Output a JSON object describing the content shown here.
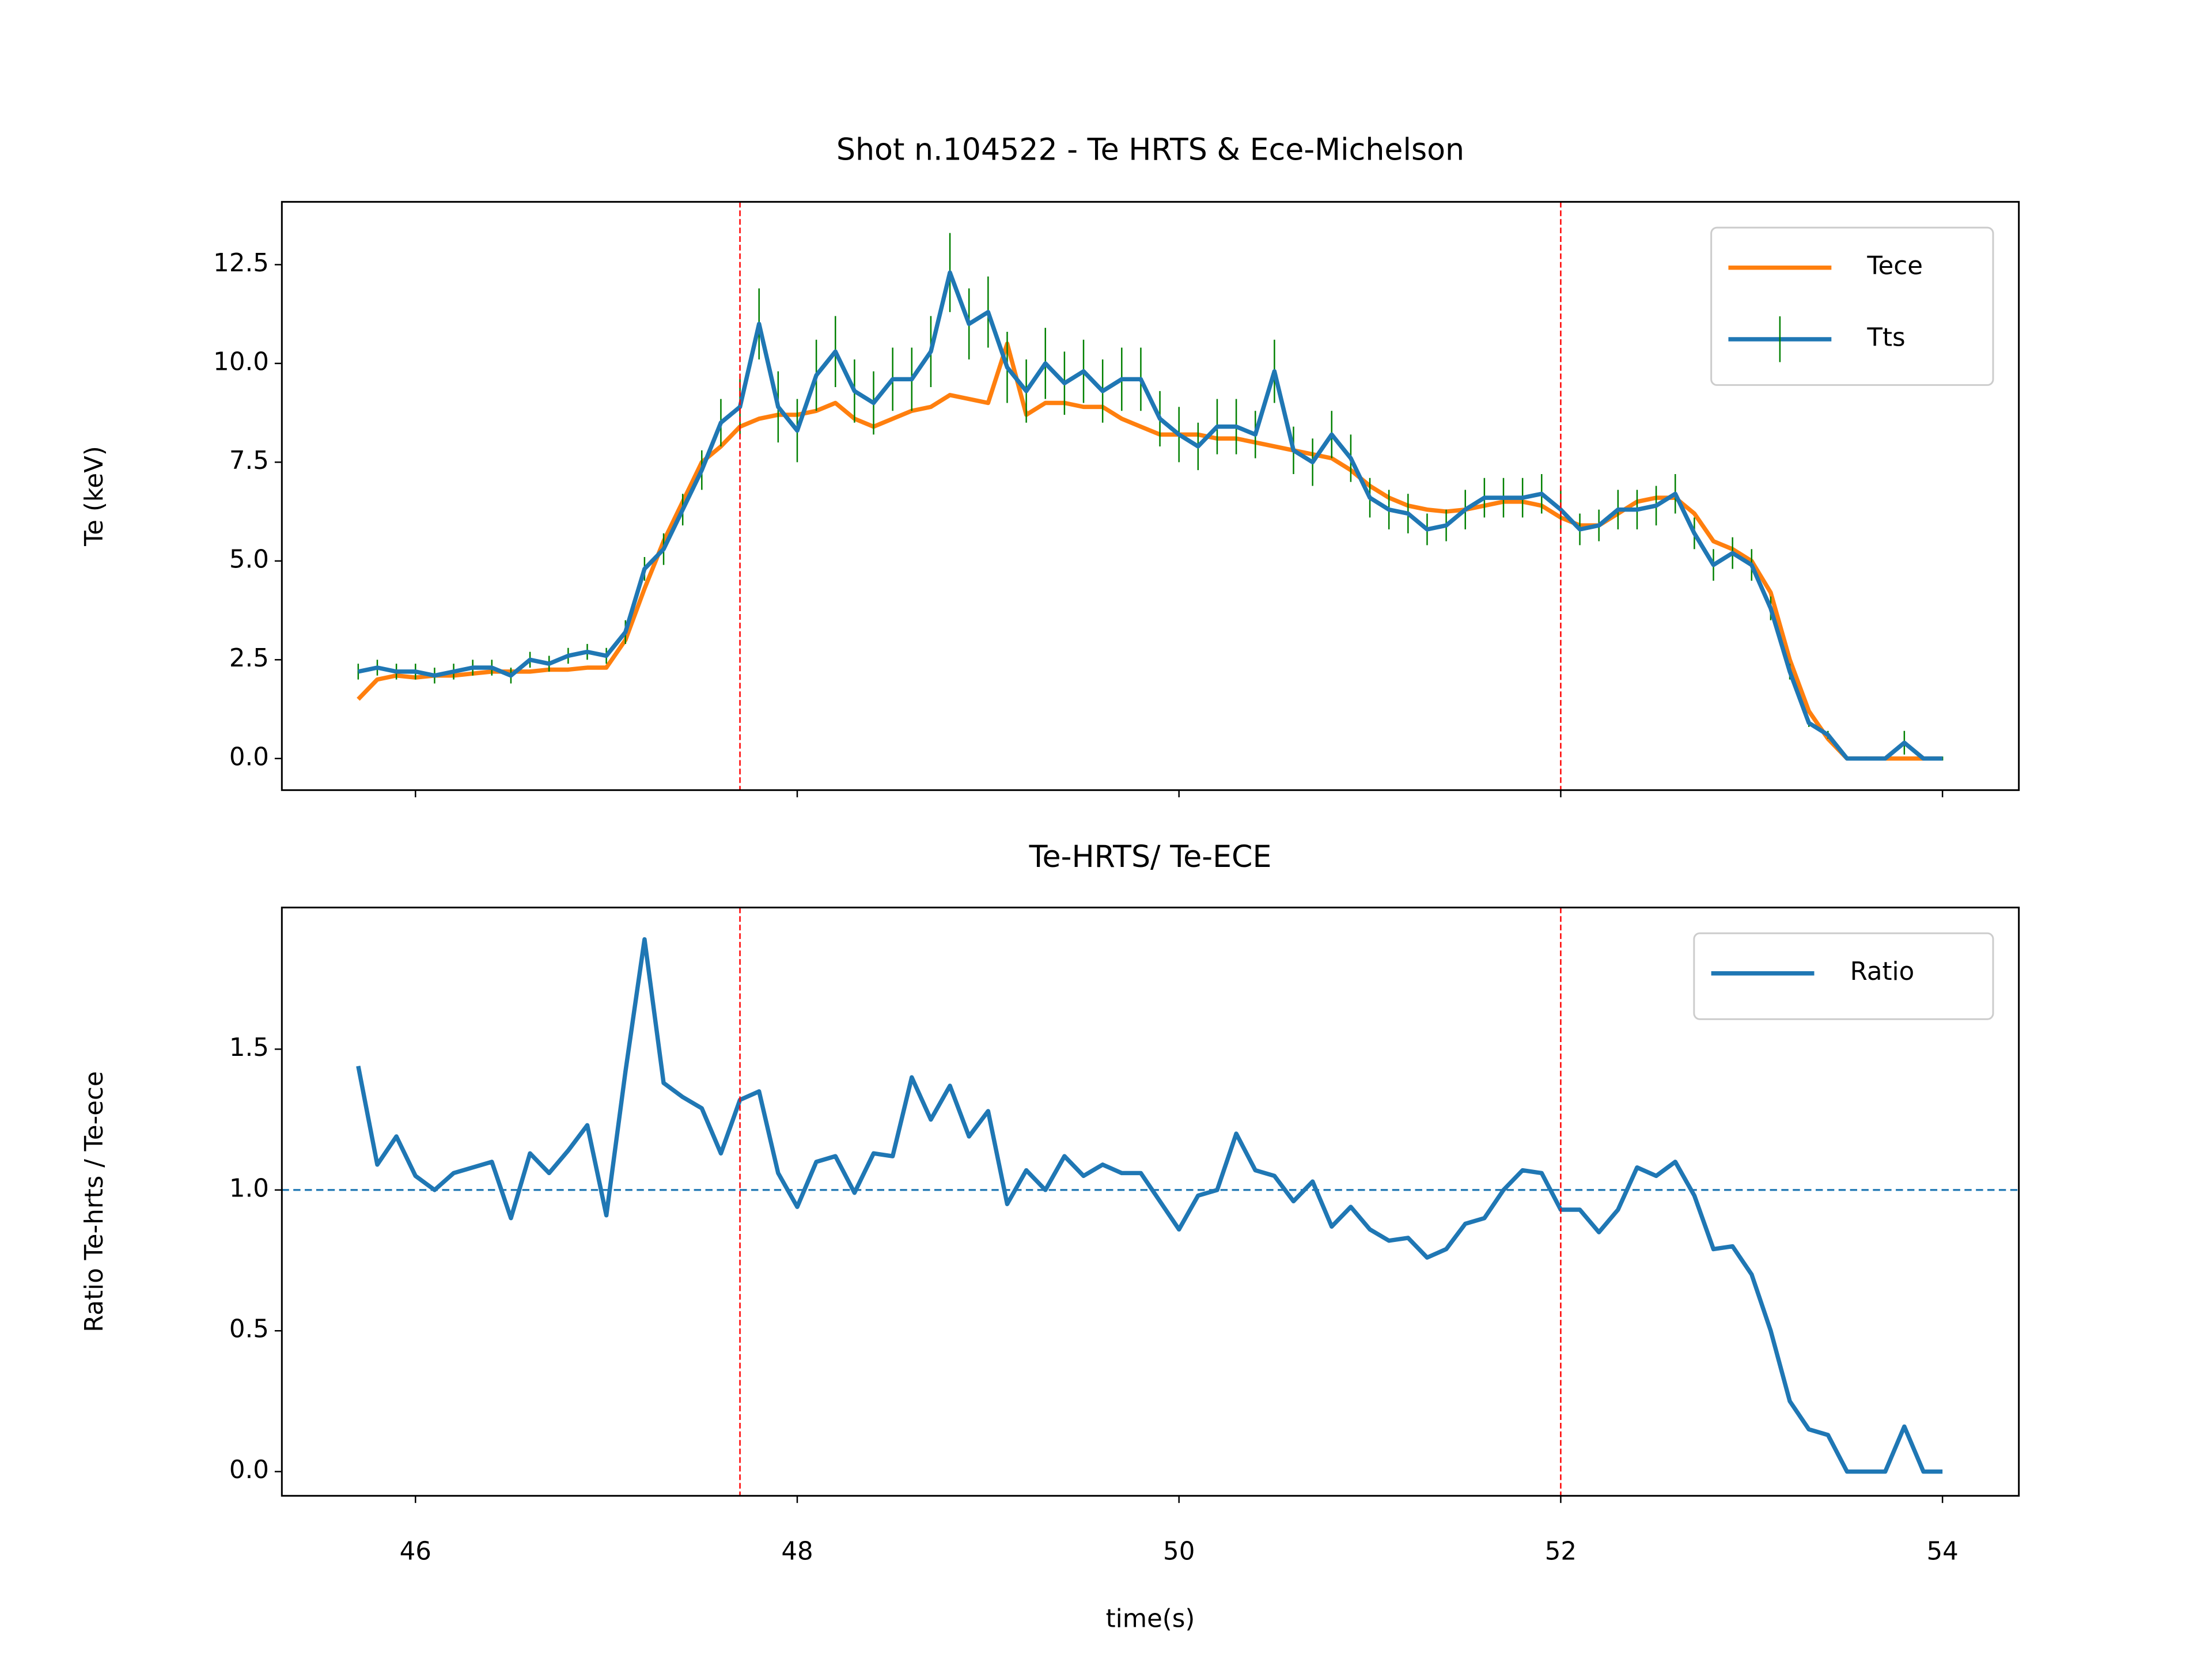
{
  "chart_data": [
    {
      "type": "line",
      "title": "Shot n.104522 - Te HRTS & Ece-Michelson",
      "ylabel": "Te (keV)",
      "x": [
        45.7,
        45.8,
        45.9,
        46.0,
        46.1,
        46.2,
        46.3,
        46.4,
        46.5,
        46.6,
        46.7,
        46.8,
        46.9,
        47.0,
        47.1,
        47.2,
        47.3,
        47.4,
        47.5,
        47.6,
        47.7,
        47.8,
        47.9,
        48.0,
        48.1,
        48.2,
        48.3,
        48.4,
        48.5,
        48.6,
        48.7,
        48.8,
        48.9,
        49.0,
        49.1,
        49.2,
        49.3,
        49.4,
        49.5,
        49.6,
        49.7,
        49.8,
        49.9,
        50.0,
        50.1,
        50.2,
        50.3,
        50.4,
        50.5,
        50.6,
        50.7,
        50.8,
        50.9,
        51.0,
        51.1,
        51.2,
        51.3,
        51.4,
        51.5,
        51.6,
        51.7,
        51.8,
        51.9,
        52.0,
        52.1,
        52.2,
        52.3,
        52.4,
        52.5,
        52.6,
        52.7,
        52.8,
        52.9,
        53.0,
        53.1,
        53.2,
        53.3,
        53.4,
        53.5,
        53.6,
        53.7,
        53.8,
        53.9,
        54.0
      ],
      "xlim": [
        45.3,
        54.4
      ],
      "ylim": [
        -0.8,
        14.09
      ],
      "xticks": [
        46,
        48,
        50,
        52,
        54
      ],
      "yticks": [
        {
          "value": 0,
          "label": "0.0"
        },
        2.5,
        {
          "value": 5,
          "label": "5.0"
        },
        7.5,
        {
          "value": 10,
          "label": "10.0"
        },
        12.5
      ],
      "series": [
        {
          "name": "Tece",
          "color": "#ff7f0e",
          "values": [
            1.5,
            2.0,
            2.1,
            2.05,
            2.1,
            2.1,
            2.15,
            2.2,
            2.2,
            2.2,
            2.25,
            2.25,
            2.3,
            2.3,
            3.0,
            4.3,
            5.5,
            6.5,
            7.5,
            7.9,
            8.4,
            8.6,
            8.7,
            8.7,
            8.8,
            9.0,
            8.6,
            8.4,
            8.6,
            8.8,
            8.9,
            9.2,
            9.1,
            9.0,
            10.5,
            8.7,
            9.0,
            9.0,
            8.9,
            8.9,
            8.6,
            8.4,
            8.2,
            8.2,
            8.2,
            8.1,
            8.1,
            8.0,
            7.9,
            7.8,
            7.7,
            7.6,
            7.3,
            6.9,
            6.6,
            6.4,
            6.3,
            6.25,
            6.3,
            6.4,
            6.5,
            6.5,
            6.4,
            6.1,
            5.9,
            5.9,
            6.2,
            6.5,
            6.6,
            6.6,
            6.2,
            5.5,
            5.3,
            5.0,
            4.2,
            2.5,
            1.2,
            0.5,
            0.0,
            0.0,
            0.0,
            0.0,
            0.0,
            0.0
          ]
        },
        {
          "name": "Tts",
          "color": "#1f77b4",
          "error_color": "#008000",
          "values": [
            2.2,
            2.3,
            2.2,
            2.2,
            2.1,
            2.2,
            2.3,
            2.3,
            2.1,
            2.5,
            2.4,
            2.6,
            2.7,
            2.6,
            3.2,
            4.8,
            5.3,
            6.3,
            7.3,
            8.5,
            8.9,
            11.0,
            8.9,
            8.3,
            9.7,
            10.3,
            9.3,
            9.0,
            9.6,
            9.6,
            10.3,
            12.3,
            11.0,
            11.3,
            9.9,
            9.3,
            10.0,
            9.5,
            9.8,
            9.3,
            9.6,
            9.6,
            8.6,
            8.2,
            7.9,
            8.4,
            8.4,
            8.2,
            9.8,
            7.8,
            7.5,
            8.2,
            7.6,
            6.6,
            6.3,
            6.2,
            5.8,
            5.9,
            6.3,
            6.6,
            6.6,
            6.6,
            6.7,
            6.3,
            5.8,
            5.9,
            6.3,
            6.3,
            6.4,
            6.7,
            5.7,
            4.9,
            5.2,
            4.9,
            3.8,
            2.2,
            0.9,
            0.6,
            0.0,
            0.0,
            0.0,
            0.4,
            0.0,
            0.0
          ],
          "errors": [
            0.2,
            0.2,
            0.2,
            0.2,
            0.2,
            0.2,
            0.2,
            0.2,
            0.2,
            0.2,
            0.2,
            0.2,
            0.2,
            0.2,
            0.3,
            0.3,
            0.4,
            0.4,
            0.5,
            0.6,
            0.7,
            0.9,
            0.9,
            0.8,
            0.9,
            0.9,
            0.8,
            0.8,
            0.8,
            0.8,
            0.9,
            1.0,
            0.9,
            0.9,
            0.9,
            0.8,
            0.9,
            0.8,
            0.8,
            0.8,
            0.8,
            0.8,
            0.7,
            0.7,
            0.6,
            0.7,
            0.7,
            0.6,
            0.8,
            0.6,
            0.6,
            0.6,
            0.6,
            0.5,
            0.5,
            0.5,
            0.4,
            0.4,
            0.5,
            0.5,
            0.5,
            0.5,
            0.5,
            0.5,
            0.4,
            0.4,
            0.5,
            0.5,
            0.5,
            0.5,
            0.4,
            0.4,
            0.4,
            0.4,
            0.3,
            0.2,
            0.1,
            0.1,
            0.05,
            0.05,
            0.05,
            0.3,
            0.05,
            0.05
          ]
        }
      ],
      "vlines": {
        "values": [
          47.7,
          52.0
        ],
        "color": "#ff0000"
      },
      "legend": "upper right"
    },
    {
      "type": "line",
      "title": "Te-HRTS/ Te-ECE",
      "xlabel": "time(s)",
      "ylabel": "Ratio Te-hrts / Te-ece",
      "x": [
        45.7,
        45.8,
        45.9,
        46.0,
        46.1,
        46.2,
        46.3,
        46.4,
        46.5,
        46.6,
        46.7,
        46.8,
        46.9,
        47.0,
        47.1,
        47.2,
        47.3,
        47.4,
        47.5,
        47.6,
        47.7,
        47.8,
        47.9,
        48.0,
        48.1,
        48.2,
        48.3,
        48.4,
        48.5,
        48.6,
        48.7,
        48.8,
        48.9,
        49.0,
        49.1,
        49.2,
        49.3,
        49.4,
        49.5,
        49.6,
        49.7,
        49.8,
        49.9,
        50.0,
        50.1,
        50.2,
        50.3,
        50.4,
        50.5,
        50.6,
        50.7,
        50.8,
        50.9,
        51.0,
        51.1,
        51.2,
        51.3,
        51.4,
        51.5,
        51.6,
        51.7,
        51.8,
        51.9,
        52.0,
        52.1,
        52.2,
        52.3,
        52.4,
        52.5,
        52.6,
        52.7,
        52.8,
        52.9,
        53.0,
        53.1,
        53.2,
        53.3,
        53.4,
        53.5,
        53.6,
        53.7,
        53.8,
        53.9,
        54.0
      ],
      "xlim": [
        45.3,
        54.4
      ],
      "ylim": [
        -0.086,
        2.003
      ],
      "xticks": [
        46,
        48,
        50,
        52,
        54
      ],
      "yticks": [
        {
          "value": 0,
          "label": "0.0"
        },
        0.5,
        {
          "value": 1,
          "label": "1.0"
        },
        1.5
      ],
      "series": [
        {
          "name": "Ratio",
          "color": "#1f77b4",
          "values": [
            1.44,
            1.09,
            1.19,
            1.05,
            1.0,
            1.06,
            1.08,
            1.1,
            0.9,
            1.13,
            1.06,
            1.14,
            1.23,
            0.91,
            1.42,
            1.89,
            1.38,
            1.33,
            1.29,
            1.13,
            1.32,
            1.35,
            1.06,
            0.94,
            1.1,
            1.12,
            0.99,
            1.13,
            1.12,
            1.4,
            1.25,
            1.37,
            1.19,
            1.28,
            0.95,
            1.07,
            1.0,
            1.12,
            1.05,
            1.09,
            1.06,
            1.06,
            0.96,
            0.86,
            0.98,
            1.0,
            1.2,
            1.07,
            1.05,
            0.96,
            1.03,
            0.87,
            0.94,
            0.86,
            0.82,
            0.83,
            0.76,
            0.79,
            0.88,
            0.9,
            1.0,
            1.07,
            1.06,
            0.93,
            0.93,
            0.85,
            0.93,
            1.08,
            1.05,
            1.1,
            0.98,
            0.79,
            0.8,
            0.7,
            0.5,
            0.25,
            0.15,
            0.13,
            0.0,
            0.0,
            0.0,
            0.16,
            0.0,
            0.0
          ]
        }
      ],
      "vlines": {
        "values": [
          47.7,
          52.0
        ],
        "color": "#ff0000"
      },
      "hline": {
        "value": 1.0,
        "color": "#1f77b4"
      },
      "legend": "upper right"
    }
  ]
}
